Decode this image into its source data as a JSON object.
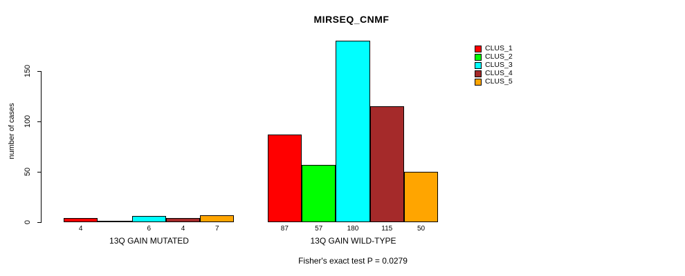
{
  "title": "MIRSEQ_CNMF",
  "chart_data": {
    "type": "bar",
    "title": "MIRSEQ_CNMF",
    "ylabel": "number of cases",
    "xlabel": "",
    "yticks": [
      0,
      50,
      100,
      150
    ],
    "ylim": [
      0,
      150
    ],
    "grid": false,
    "legend_position": "right",
    "series": [
      "CLUS_1",
      "CLUS_2",
      "CLUS_3",
      "CLUS_4",
      "CLUS_5"
    ],
    "colors": [
      "#FF0000",
      "#00FF00",
      "#00FFFF",
      "#A52A2A",
      "#FFA500"
    ],
    "groups": [
      {
        "label": "13Q GAIN MUTATED",
        "values": [
          4,
          0,
          6,
          4,
          7
        ],
        "value_labels": [
          "4",
          "",
          "6",
          "4",
          "7"
        ]
      },
      {
        "label": "13Q GAIN WILD-TYPE",
        "values": [
          87,
          57,
          180,
          115,
          50
        ],
        "value_labels": [
          "87",
          "57",
          "180",
          "115",
          "50"
        ]
      }
    ],
    "annotation": "Fisher's exact test P = 0.0279"
  },
  "legend": {
    "items": [
      {
        "label": "CLUS_1",
        "color": "#FF0000"
      },
      {
        "label": "CLUS_2",
        "color": "#00FF00"
      },
      {
        "label": "CLUS_3",
        "color": "#00FFFF"
      },
      {
        "label": "CLUS_4",
        "color": "#A52A2A"
      },
      {
        "label": "CLUS_5",
        "color": "#FFA500"
      }
    ]
  }
}
